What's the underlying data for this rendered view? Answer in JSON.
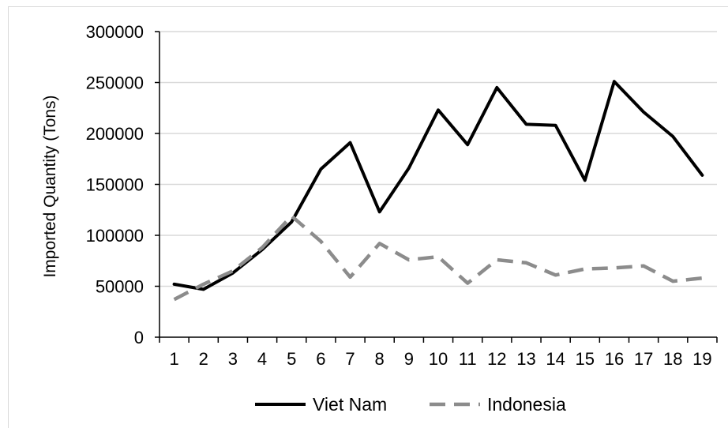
{
  "chart_data": {
    "type": "line",
    "title": "",
    "xlabel": "",
    "ylabel": "Imported Quantity (Tons)",
    "categories": [
      "1",
      "2",
      "3",
      "4",
      "5",
      "6",
      "7",
      "8",
      "9",
      "10",
      "11",
      "12",
      "13",
      "14",
      "15",
      "16",
      "17",
      "18",
      "19"
    ],
    "ylim": [
      0,
      300000
    ],
    "yticks": [
      "0",
      "50000",
      "100000",
      "150000",
      "200000",
      "250000",
      "300000"
    ],
    "grid": "horizontal",
    "legend_position": "bottom",
    "series": [
      {
        "name": "Viet Nam",
        "color": "#000000",
        "style": "solid",
        "values": [
          52000,
          47000,
          63000,
          86000,
          113000,
          165000,
          191000,
          123000,
          166000,
          223000,
          189000,
          245000,
          209000,
          208000,
          154000,
          251000,
          221000,
          197000,
          159000
        ]
      },
      {
        "name": "Indonesia",
        "color": "#8c8c8c",
        "style": "dashed",
        "values": [
          37000,
          52000,
          65000,
          88000,
          119000,
          94000,
          59000,
          92000,
          76000,
          79000,
          53000,
          76000,
          73000,
          61000,
          67000,
          68000,
          70000,
          55000,
          58000
        ]
      }
    ]
  }
}
